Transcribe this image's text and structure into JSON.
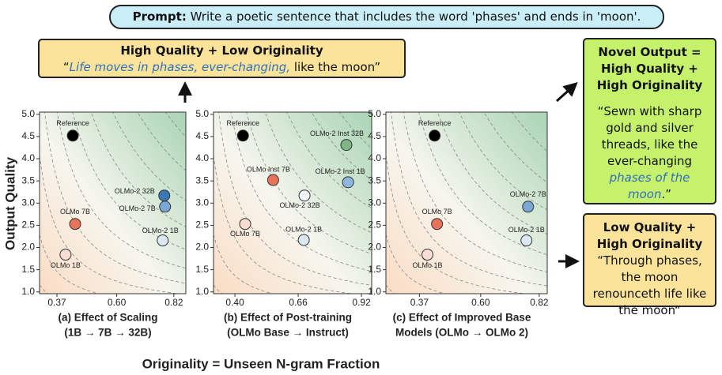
{
  "prompt": {
    "label": "Prompt:",
    "text": "Write a poetic sentence that includes the word 'phases' and ends in 'moon'."
  },
  "callouts": [
    {
      "title": "High Quality + Low Originality",
      "quote": [
        {
          "text": "“"
        },
        {
          "text": "Life moves in phases, ever-changing,",
          "emphasis": true
        },
        {
          "text": " like the moon”"
        }
      ]
    },
    {
      "title": "Novel Output = High Quality + High Originality",
      "quote": [
        {
          "text": "“Sewn with sharp gold and silver threads, like the ever-changing "
        },
        {
          "text": "phases of the moon",
          "emphasis": true
        },
        {
          "text": ".”"
        }
      ]
    },
    {
      "title": "Low Quality + High Originality",
      "quote": [
        {
          "text": "“Through phases, the moon renounceth life like the moon“"
        }
      ]
    }
  ],
  "y_label": "Output Quality",
  "x_label": "Originality = Unseen N-gram Fraction",
  "chart_data": [
    {
      "type": "scatter",
      "caption": [
        "(a) Effect of Scaling",
        "(1B → 7B → 32B)"
      ],
      "xlim": [
        0.303,
        0.866
      ],
      "ylim": [
        0.96,
        5.05
      ],
      "xticks": [
        0.37,
        {
          "value": 0.6,
          "label": "0.60"
        },
        0.82
      ],
      "yticks": [
        {
          "value": 1,
          "label": "1.0"
        },
        1.5,
        {
          "value": 2,
          "label": "2.0"
        },
        2.5,
        {
          "value": 3,
          "label": "3.0"
        },
        3.5,
        {
          "value": 4,
          "label": "4.0"
        },
        4.5,
        {
          "value": 5,
          "label": "5.0"
        }
      ],
      "points": [
        {
          "label": "Reference",
          "x": 0.431,
          "y": 4.52,
          "color": "#000000"
        },
        {
          "label": "OLMo-2 32B",
          "x": 0.783,
          "y": 3.17,
          "color": "#3a78b5"
        },
        {
          "label": "OLMo-2 7B",
          "x": 0.786,
          "y": 2.92,
          "color": "#7aa7d6"
        },
        {
          "label": "OLMo 7B",
          "x": 0.44,
          "y": 2.53,
          "color": "#e8735a"
        },
        {
          "label": "OLMo-2 1B",
          "x": 0.777,
          "y": 2.16,
          "color": "#dde8f5"
        },
        {
          "label": "OLMo 1B",
          "x": 0.403,
          "y": 1.84,
          "color": "#f8ddd5"
        }
      ]
    },
    {
      "type": "scatter",
      "caption": [
        "(b) Effect of Post-training",
        "(OLMo Base → Instruct)"
      ],
      "xlim": [
        0.312,
        0.962
      ],
      "ylim": [
        0.96,
        5.05
      ],
      "xticks": [
        {
          "value": 0.4,
          "label": "0.40"
        },
        0.66,
        0.92
      ],
      "yticks": [
        {
          "value": 1,
          "label": "1.0"
        },
        1.5,
        {
          "value": 2,
          "label": "2.0"
        },
        2.5,
        {
          "value": 3,
          "label": "3.0"
        },
        3.5,
        {
          "value": 4,
          "label": "4.0"
        },
        4.5,
        {
          "value": 5,
          "label": "5.0"
        }
      ],
      "points": [
        {
          "label": "Reference",
          "x": 0.433,
          "y": 4.52,
          "color": "#000000"
        },
        {
          "label": "OLMo-2 Inst 32B",
          "x": 0.858,
          "y": 4.31,
          "color": "#7fb685"
        },
        {
          "label": "OLMo Inst 7B",
          "x": 0.557,
          "y": 3.52,
          "color": "#e8735a"
        },
        {
          "label": "OLMo-2 Inst 1B",
          "x": 0.865,
          "y": 3.47,
          "color": "#8fb6df"
        },
        {
          "label": "OLMo-2 32B",
          "x": 0.686,
          "y": 3.17,
          "color": "#f3f6fb"
        },
        {
          "label": "OLMo 7B",
          "x": 0.442,
          "y": 2.53,
          "color": "#f8ddd5"
        },
        {
          "label": "OLMo-2 1B",
          "x": 0.683,
          "y": 2.17,
          "color": "#dde8f5"
        }
      ]
    },
    {
      "type": "scatter",
      "caption": [
        "(c) Effect of Improved Base",
        "Models (OLMo → OLMo 2)"
      ],
      "xlim": [
        0.244,
        0.85
      ],
      "ylim": [
        0.96,
        5.05
      ],
      "xticks": [
        0.37,
        {
          "value": 0.6,
          "label": "0.60"
        },
        0.82
      ],
      "yticks": [
        {
          "value": 1,
          "label": "1.0"
        },
        1.5,
        {
          "value": 2,
          "label": "2.0"
        },
        2.5,
        {
          "value": 3,
          "label": "3.0"
        },
        3.5,
        {
          "value": 4,
          "label": "4.0"
        },
        4.5,
        {
          "value": 5,
          "label": "5.0"
        }
      ],
      "points": [
        {
          "label": "Reference",
          "x": 0.427,
          "y": 4.52,
          "color": "#000000"
        },
        {
          "label": "OLMo-2 7B",
          "x": 0.778,
          "y": 2.92,
          "color": "#7aa7d6"
        },
        {
          "label": "OLMo 7B",
          "x": 0.436,
          "y": 2.53,
          "color": "#e8735a"
        },
        {
          "label": "OLMo-2 1B",
          "x": 0.772,
          "y": 2.16,
          "color": "#dde8f5"
        },
        {
          "label": "OLMo 1B",
          "x": 0.4,
          "y": 1.84,
          "color": "#f8ddd5"
        }
      ]
    }
  ]
}
